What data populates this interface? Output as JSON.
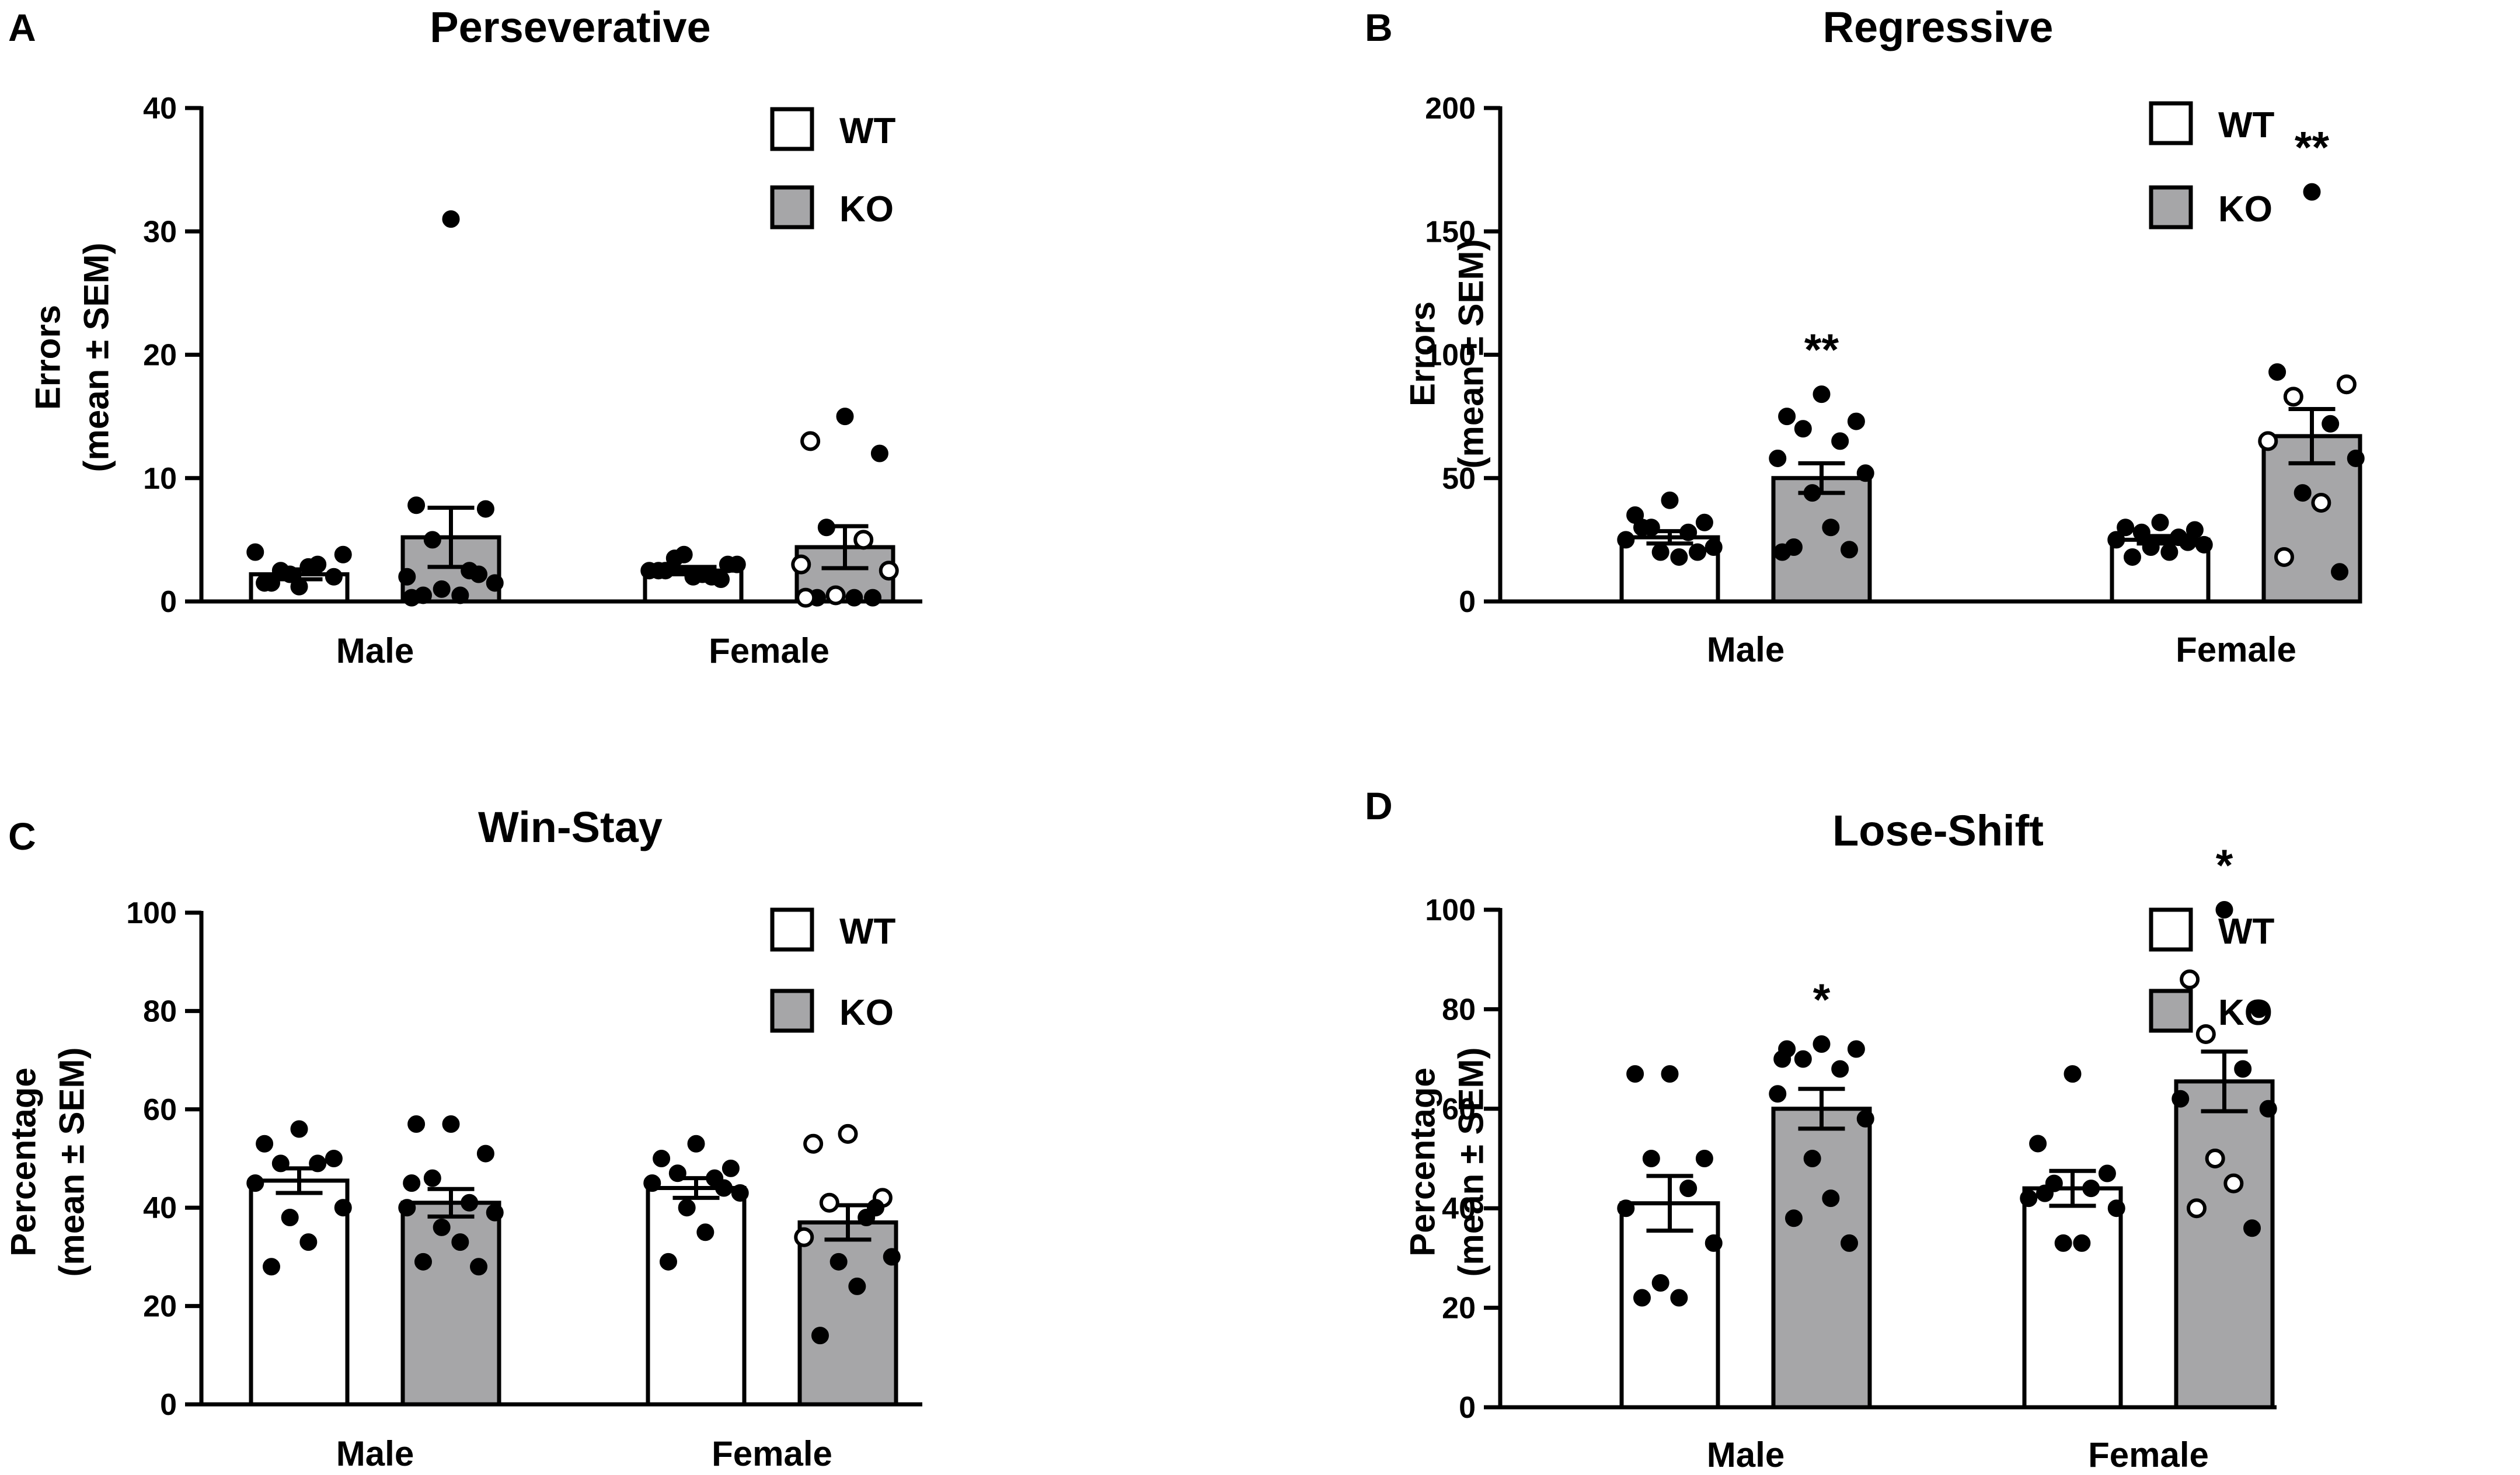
{
  "chart_data": [
    {
      "panel": "A",
      "type": "bar",
      "title": "Perseverative",
      "ylabel_line1": "Errors",
      "ylabel_line2": "(mean ± SEM)",
      "ylim": [
        0,
        40
      ],
      "yticks": [
        0,
        10,
        20,
        30,
        40
      ],
      "categories": [
        "Male",
        "Female"
      ],
      "legend": [
        "WT",
        "KO"
      ],
      "colors": {
        "WT": "#ffffff",
        "KO": "#a6a6a8"
      },
      "series": [
        {
          "name": "WT",
          "means": [
            2.2,
            2.5
          ],
          "sem": [
            0.4,
            0.3
          ],
          "points": [
            [
              {
                "v": 1.2,
                "o": false
              },
              {
                "v": 1.5,
                "o": false
              },
              {
                "v": 2.0,
                "o": false
              },
              {
                "v": 2.5,
                "o": false
              },
              {
                "v": 3.0,
                "o": false
              },
              {
                "v": 4.0,
                "o": false
              },
              {
                "v": 3.8,
                "o": false
              },
              {
                "v": 2.2,
                "o": false
              },
              {
                "v": 2.8,
                "o": false
              },
              {
                "v": 1.5,
                "o": false
              }
            ],
            [
              {
                "v": 2.0,
                "o": false
              },
              {
                "v": 2.5,
                "o": false
              },
              {
                "v": 3.0,
                "o": false
              },
              {
                "v": 3.5,
                "o": false
              },
              {
                "v": 2.0,
                "o": false
              },
              {
                "v": 2.5,
                "o": false
              },
              {
                "v": 3.0,
                "o": false
              },
              {
                "v": 3.8,
                "o": false
              },
              {
                "v": 2.2,
                "o": false
              },
              {
                "v": 2.5,
                "o": false
              },
              {
                "v": 1.8,
                "o": false
              }
            ]
          ]
        },
        {
          "name": "KO",
          "means": [
            5.2,
            4.4
          ],
          "sem": [
            2.4,
            1.7
          ],
          "points": [
            [
              {
                "v": 31.0,
                "o": false
              },
              {
                "v": 7.8,
                "o": false
              },
              {
                "v": 7.5,
                "o": false
              },
              {
                "v": 5.0,
                "o": false
              },
              {
                "v": 2.5,
                "o": false
              },
              {
                "v": 2.0,
                "o": false
              },
              {
                "v": 1.5,
                "o": false
              },
              {
                "v": 1.0,
                "o": false
              },
              {
                "v": 0.5,
                "o": false
              },
              {
                "v": 0.5,
                "o": false
              },
              {
                "v": 2.2,
                "o": false
              },
              {
                "v": 0.3,
                "o": false
              }
            ],
            [
              {
                "v": 15.0,
                "o": false
              },
              {
                "v": 13.0,
                "o": true
              },
              {
                "v": 12.0,
                "o": false
              },
              {
                "v": 6.0,
                "o": false
              },
              {
                "v": 5.0,
                "o": true
              },
              {
                "v": 3.0,
                "o": true
              },
              {
                "v": 2.5,
                "o": true
              },
              {
                "v": 0.5,
                "o": true
              },
              {
                "v": 0.3,
                "o": false
              },
              {
                "v": 0.3,
                "o": false
              },
              {
                "v": 0.3,
                "o": false
              },
              {
                "v": 0.3,
                "o": true
              }
            ]
          ]
        }
      ],
      "significance": [
        "",
        ""
      ]
    },
    {
      "panel": "B",
      "type": "bar",
      "title": "Regressive",
      "ylabel_line1": "Errors",
      "ylabel_line2": "(mean ± SEM)",
      "ylim": [
        0,
        200
      ],
      "yticks": [
        0,
        50,
        100,
        150,
        200
      ],
      "categories": [
        "Male",
        "Female"
      ],
      "legend": [
        "WT",
        "KO"
      ],
      "colors": {
        "WT": "#ffffff",
        "KO": "#a6a6a8"
      },
      "series": [
        {
          "name": "WT",
          "means": [
            26,
            25
          ],
          "sem": [
            2.5,
            1.5
          ],
          "points": [
            [
              {
                "v": 41,
                "o": false
              },
              {
                "v": 35,
                "o": false
              },
              {
                "v": 32,
                "o": false
              },
              {
                "v": 30,
                "o": false
              },
              {
                "v": 28,
                "o": false
              },
              {
                "v": 25,
                "o": false
              },
              {
                "v": 22,
                "o": false
              },
              {
                "v": 20,
                "o": false
              },
              {
                "v": 18,
                "o": false
              },
              {
                "v": 30,
                "o": false
              },
              {
                "v": 20,
                "o": false
              }
            ],
            [
              {
                "v": 32,
                "o": false
              },
              {
                "v": 30,
                "o": false
              },
              {
                "v": 29,
                "o": false
              },
              {
                "v": 28,
                "o": false
              },
              {
                "v": 26,
                "o": false
              },
              {
                "v": 25,
                "o": false
              },
              {
                "v": 23,
                "o": false
              },
              {
                "v": 22,
                "o": false
              },
              {
                "v": 20,
                "o": false
              },
              {
                "v": 18,
                "o": false
              },
              {
                "v": 24,
                "o": false
              }
            ]
          ]
        },
        {
          "name": "KO",
          "means": [
            50,
            67
          ],
          "sem": [
            6,
            11
          ],
          "points": [
            [
              {
                "v": 84,
                "o": false
              },
              {
                "v": 75,
                "o": false
              },
              {
                "v": 73,
                "o": false
              },
              {
                "v": 70,
                "o": false
              },
              {
                "v": 65,
                "o": false
              },
              {
                "v": 58,
                "o": false
              },
              {
                "v": 52,
                "o": false
              },
              {
                "v": 44,
                "o": false
              },
              {
                "v": 30,
                "o": false
              },
              {
                "v": 22,
                "o": false
              },
              {
                "v": 21,
                "o": false
              },
              {
                "v": 20,
                "o": false
              }
            ],
            [
              {
                "v": 166,
                "o": false
              },
              {
                "v": 93,
                "o": false
              },
              {
                "v": 88,
                "o": true
              },
              {
                "v": 83,
                "o": true
              },
              {
                "v": 72,
                "o": false
              },
              {
                "v": 65,
                "o": true
              },
              {
                "v": 58,
                "o": false
              },
              {
                "v": 44,
                "o": false
              },
              {
                "v": 40,
                "o": true
              },
              {
                "v": 18,
                "o": true
              },
              {
                "v": 12,
                "o": false
              }
            ]
          ]
        }
      ],
      "significance": [
        "**",
        "**"
      ]
    },
    {
      "panel": "C",
      "type": "bar",
      "title": "Win-Stay",
      "ylabel_line1": "Percentage",
      "ylabel_line2": "(mean ± SEM)",
      "ylim": [
        0,
        100
      ],
      "yticks": [
        0,
        20,
        40,
        60,
        80,
        100
      ],
      "categories": [
        "Male",
        "Female"
      ],
      "legend": [
        "WT",
        "KO"
      ],
      "colors": {
        "WT": "#ffffff",
        "KO": "#a6a6a8"
      },
      "series": [
        {
          "name": "WT",
          "means": [
            45.5,
            44
          ],
          "sem": [
            2.5,
            2
          ],
          "points": [
            [
              {
                "v": 56,
                "o": false
              },
              {
                "v": 53,
                "o": false
              },
              {
                "v": 50,
                "o": false
              },
              {
                "v": 49,
                "o": false
              },
              {
                "v": 49,
                "o": false
              },
              {
                "v": 45,
                "o": false
              },
              {
                "v": 40,
                "o": false
              },
              {
                "v": 38,
                "o": false
              },
              {
                "v": 33,
                "o": false
              },
              {
                "v": 28,
                "o": false
              }
            ],
            [
              {
                "v": 53,
                "o": false
              },
              {
                "v": 50,
                "o": false
              },
              {
                "v": 48,
                "o": false
              },
              {
                "v": 47,
                "o": false
              },
              {
                "v": 46,
                "o": false
              },
              {
                "v": 45,
                "o": false
              },
              {
                "v": 43,
                "o": false
              },
              {
                "v": 40,
                "o": false
              },
              {
                "v": 35,
                "o": false
              },
              {
                "v": 29,
                "o": false
              },
              {
                "v": 44,
                "o": false
              }
            ]
          ]
        },
        {
          "name": "KO",
          "means": [
            41,
            37
          ],
          "sem": [
            2.8,
            3.5
          ],
          "points": [
            [
              {
                "v": 57,
                "o": false
              },
              {
                "v": 57,
                "o": false
              },
              {
                "v": 51,
                "o": false
              },
              {
                "v": 46,
                "o": false
              },
              {
                "v": 41,
                "o": false
              },
              {
                "v": 40,
                "o": false
              },
              {
                "v": 39,
                "o": false
              },
              {
                "v": 36,
                "o": false
              },
              {
                "v": 33,
                "o": false
              },
              {
                "v": 29,
                "o": false
              },
              {
                "v": 28,
                "o": false
              },
              {
                "v": 45,
                "o": false
              }
            ],
            [
              {
                "v": 55,
                "o": true
              },
              {
                "v": 53,
                "o": true
              },
              {
                "v": 42,
                "o": true
              },
              {
                "v": 41,
                "o": true
              },
              {
                "v": 38,
                "o": false
              },
              {
                "v": 34,
                "o": true
              },
              {
                "v": 30,
                "o": false
              },
              {
                "v": 29,
                "o": false
              },
              {
                "v": 24,
                "o": false
              },
              {
                "v": 14,
                "o": false
              },
              {
                "v": 40,
                "o": false
              }
            ]
          ]
        }
      ],
      "significance": [
        "",
        ""
      ]
    },
    {
      "panel": "D",
      "type": "bar",
      "title": "Lose-Shift",
      "ylabel_line1": "Percentage",
      "ylabel_line2": "(mean ± SEM)",
      "ylim": [
        0,
        100
      ],
      "yticks": [
        0,
        20,
        40,
        60,
        80,
        100
      ],
      "categories": [
        "Male",
        "Female"
      ],
      "legend": [
        "WT",
        "KO"
      ],
      "colors": {
        "WT": "#ffffff",
        "KO": "#a6a6a8"
      },
      "series": [
        {
          "name": "WT",
          "means": [
            41,
            44
          ],
          "sem": [
            5.5,
            3.5
          ],
          "points": [
            [
              {
                "v": 67,
                "o": false
              },
              {
                "v": 67,
                "o": false
              },
              {
                "v": 50,
                "o": false
              },
              {
                "v": 50,
                "o": false
              },
              {
                "v": 44,
                "o": false
              },
              {
                "v": 40,
                "o": false
              },
              {
                "v": 33,
                "o": false
              },
              {
                "v": 25,
                "o": false
              },
              {
                "v": 22,
                "o": false
              },
              {
                "v": 22,
                "o": false
              }
            ],
            [
              {
                "v": 67,
                "o": false
              },
              {
                "v": 53,
                "o": false
              },
              {
                "v": 47,
                "o": false
              },
              {
                "v": 45,
                "o": false
              },
              {
                "v": 44,
                "o": false
              },
              {
                "v": 42,
                "o": false
              },
              {
                "v": 40,
                "o": false
              },
              {
                "v": 33,
                "o": false
              },
              {
                "v": 33,
                "o": false
              },
              {
                "v": 43,
                "o": false
              }
            ]
          ]
        },
        {
          "name": "KO",
          "means": [
            60,
            65.5
          ],
          "sem": [
            4,
            6
          ],
          "points": [
            [
              {
                "v": 73,
                "o": false
              },
              {
                "v": 72,
                "o": false
              },
              {
                "v": 72,
                "o": false
              },
              {
                "v": 70,
                "o": false
              },
              {
                "v": 68,
                "o": false
              },
              {
                "v": 63,
                "o": false
              },
              {
                "v": 58,
                "o": false
              },
              {
                "v": 50,
                "o": false
              },
              {
                "v": 42,
                "o": false
              },
              {
                "v": 38,
                "o": false
              },
              {
                "v": 33,
                "o": false
              },
              {
                "v": 70,
                "o": false
              }
            ],
            [
              {
                "v": 100,
                "o": false
              },
              {
                "v": 86,
                "o": true
              },
              {
                "v": 80,
                "o": false
              },
              {
                "v": 75,
                "o": true
              },
              {
                "v": 68,
                "o": false
              },
              {
                "v": 62,
                "o": false
              },
              {
                "v": 60,
                "o": false
              },
              {
                "v": 50,
                "o": true
              },
              {
                "v": 45,
                "o": true
              },
              {
                "v": 40,
                "o": true
              },
              {
                "v": 36,
                "o": false
              }
            ]
          ]
        }
      ],
      "significance": [
        "*",
        "*"
      ]
    }
  ]
}
